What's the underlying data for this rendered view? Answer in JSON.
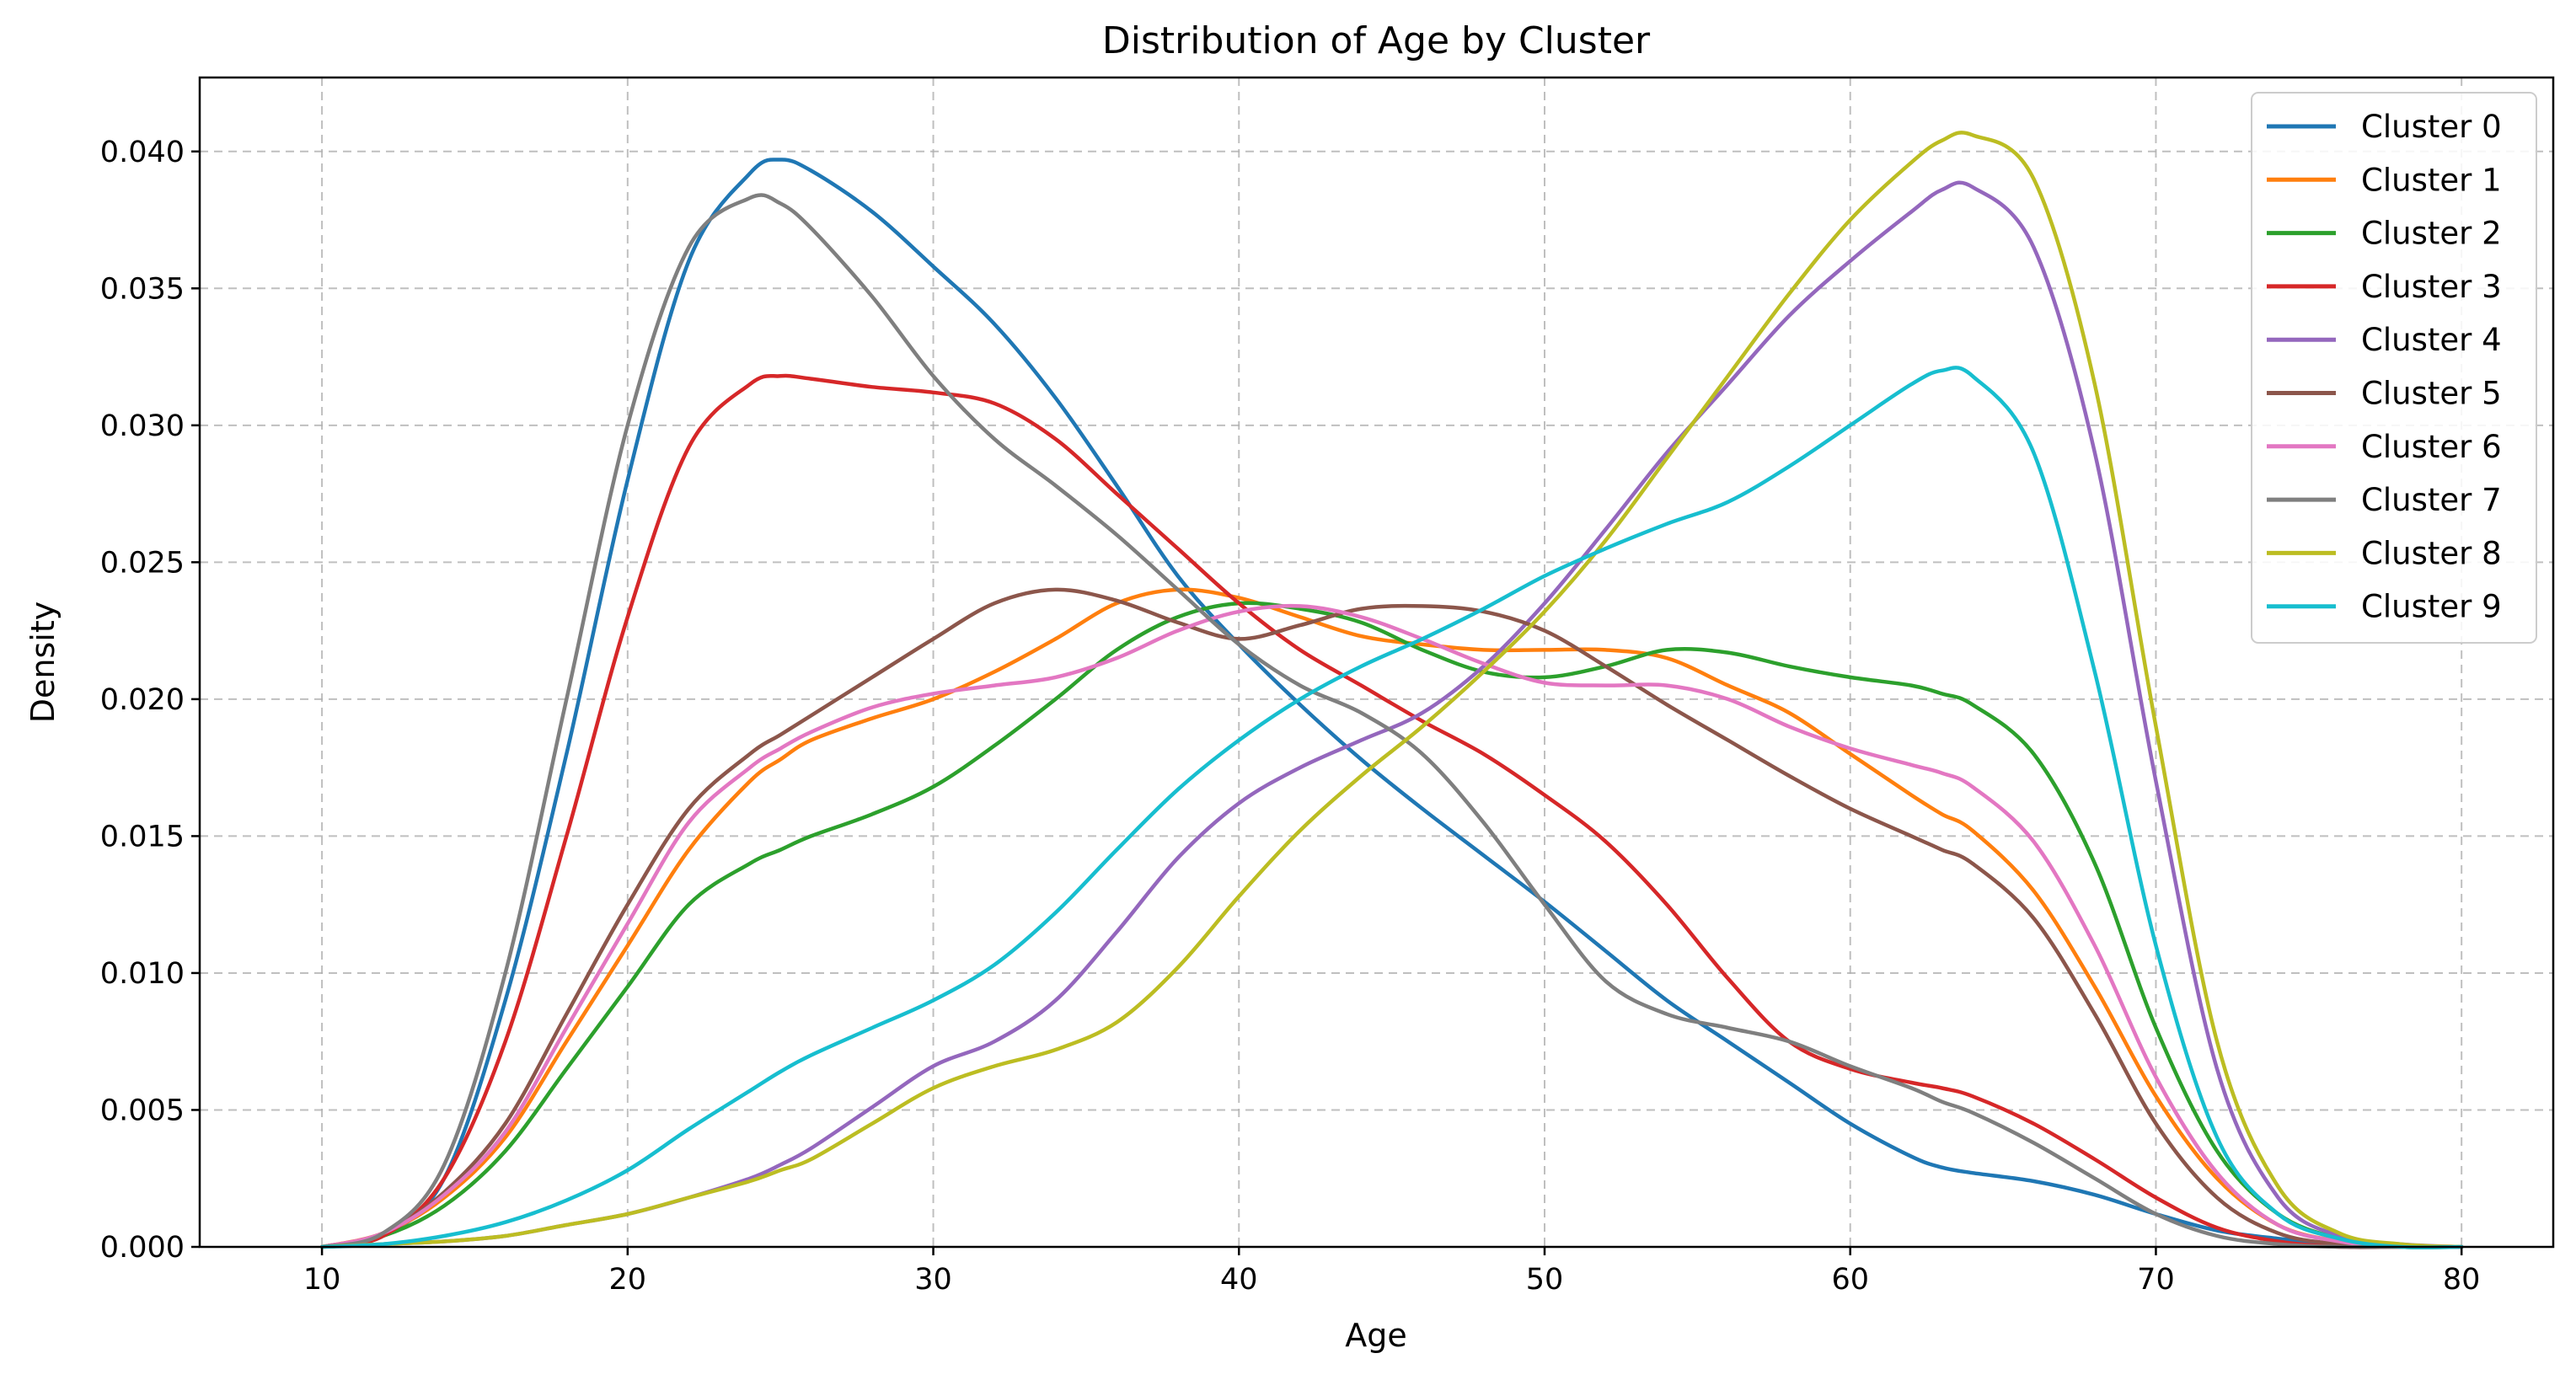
{
  "chart_data": {
    "type": "line",
    "title": "Distribution of Age by Cluster",
    "xlabel": "Age",
    "ylabel": "Density",
    "xlim": [
      6,
      83
    ],
    "ylim": [
      0,
      0.0427
    ],
    "x_ticks": [
      10,
      20,
      30,
      40,
      50,
      60,
      70,
      80
    ],
    "y_ticks": [
      0.0,
      0.005,
      0.01,
      0.015,
      0.02,
      0.025,
      0.03,
      0.035,
      0.04
    ],
    "y_tick_labels": [
      "0.000",
      "0.005",
      "0.010",
      "0.015",
      "0.020",
      "0.025",
      "0.030",
      "0.035",
      "0.040"
    ],
    "grid": true,
    "legend_position": "top-right",
    "x": [
      10,
      12,
      14,
      16,
      18,
      20,
      22,
      24,
      25,
      26,
      28,
      30,
      32,
      34,
      36,
      38,
      40,
      42,
      44,
      46,
      48,
      50,
      52,
      54,
      56,
      58,
      60,
      62,
      63,
      64,
      66,
      68,
      70,
      72,
      74,
      76,
      78,
      80
    ],
    "series": [
      {
        "name": "Cluster 0",
        "color": "#1f77b4",
        "values": [
          0.0,
          0.0004,
          0.0025,
          0.009,
          0.018,
          0.028,
          0.036,
          0.0392,
          0.0397,
          0.0393,
          0.0378,
          0.0358,
          0.0337,
          0.031,
          0.0278,
          0.0245,
          0.022,
          0.0198,
          0.0178,
          0.016,
          0.0143,
          0.0126,
          0.0108,
          0.009,
          0.0075,
          0.006,
          0.0045,
          0.0033,
          0.0029,
          0.0027,
          0.0024,
          0.0019,
          0.0012,
          0.0006,
          0.0003,
          0.0001,
          0.0,
          0.0
        ]
      },
      {
        "name": "Cluster 1",
        "color": "#ff7f0e",
        "values": [
          0.0,
          0.0005,
          0.0018,
          0.004,
          0.0075,
          0.011,
          0.0145,
          0.017,
          0.0178,
          0.0185,
          0.0193,
          0.02,
          0.021,
          0.0222,
          0.0235,
          0.024,
          0.0237,
          0.023,
          0.0223,
          0.022,
          0.0218,
          0.0218,
          0.0218,
          0.0215,
          0.0205,
          0.0195,
          0.018,
          0.0165,
          0.0158,
          0.0152,
          0.013,
          0.0095,
          0.0055,
          0.0025,
          0.0008,
          0.0002,
          0.0,
          0.0
        ]
      },
      {
        "name": "Cluster 2",
        "color": "#2ca02c",
        "values": [
          0.0,
          0.0004,
          0.0015,
          0.0035,
          0.0065,
          0.0095,
          0.0125,
          0.014,
          0.0145,
          0.015,
          0.0158,
          0.0168,
          0.0183,
          0.02,
          0.0218,
          0.023,
          0.0235,
          0.0233,
          0.0228,
          0.0218,
          0.021,
          0.0208,
          0.0212,
          0.0218,
          0.0217,
          0.0212,
          0.0208,
          0.0205,
          0.0202,
          0.0198,
          0.018,
          0.014,
          0.008,
          0.0035,
          0.0012,
          0.0003,
          0.0,
          0.0
        ]
      },
      {
        "name": "Cluster 3",
        "color": "#d62728",
        "values": [
          0.0,
          0.0004,
          0.0025,
          0.0075,
          0.015,
          0.023,
          0.0292,
          0.0315,
          0.0318,
          0.0317,
          0.0314,
          0.0312,
          0.0308,
          0.0295,
          0.0275,
          0.0255,
          0.0235,
          0.0218,
          0.0205,
          0.0192,
          0.018,
          0.0165,
          0.0148,
          0.0125,
          0.0098,
          0.0075,
          0.0065,
          0.006,
          0.0058,
          0.0055,
          0.0045,
          0.0032,
          0.0018,
          0.0007,
          0.0002,
          0.0,
          0.0,
          0.0
        ]
      },
      {
        "name": "Cluster 4",
        "color": "#9467bd",
        "values": [
          0.0,
          0.0001,
          0.0002,
          0.0004,
          0.0008,
          0.0012,
          0.0018,
          0.0025,
          0.003,
          0.0036,
          0.0051,
          0.0066,
          0.0075,
          0.009,
          0.0115,
          0.0142,
          0.0162,
          0.0175,
          0.0185,
          0.0195,
          0.0212,
          0.0235,
          0.0262,
          0.029,
          0.0315,
          0.034,
          0.036,
          0.0378,
          0.0386,
          0.0387,
          0.0365,
          0.029,
          0.017,
          0.0065,
          0.0018,
          0.0004,
          0.0001,
          0.0
        ]
      },
      {
        "name": "Cluster 5",
        "color": "#8c564b",
        "values": [
          0.0,
          0.0005,
          0.002,
          0.0045,
          0.0085,
          0.0125,
          0.016,
          0.018,
          0.0187,
          0.0194,
          0.0208,
          0.0222,
          0.0235,
          0.024,
          0.0236,
          0.0228,
          0.0222,
          0.0227,
          0.0233,
          0.0234,
          0.0232,
          0.0225,
          0.0212,
          0.0198,
          0.0185,
          0.0172,
          0.016,
          0.015,
          0.0145,
          0.014,
          0.012,
          0.0085,
          0.0045,
          0.0018,
          0.0005,
          0.0001,
          0.0,
          0.0
        ]
      },
      {
        "name": "Cluster 6",
        "color": "#e377c2",
        "values": [
          0.0,
          0.0005,
          0.0019,
          0.0042,
          0.008,
          0.0118,
          0.0155,
          0.0175,
          0.0182,
          0.0188,
          0.0197,
          0.0202,
          0.0205,
          0.0208,
          0.0215,
          0.0225,
          0.0232,
          0.0234,
          0.023,
          0.0222,
          0.0213,
          0.0206,
          0.0205,
          0.0205,
          0.02,
          0.019,
          0.0182,
          0.0176,
          0.0173,
          0.0168,
          0.0148,
          0.011,
          0.0062,
          0.0027,
          0.0008,
          0.0002,
          0.0,
          0.0
        ]
      },
      {
        "name": "Cluster 7",
        "color": "#7f7f7f",
        "values": [
          0.0,
          0.0005,
          0.003,
          0.01,
          0.02,
          0.03,
          0.0365,
          0.0383,
          0.0381,
          0.0372,
          0.0347,
          0.0318,
          0.0295,
          0.0278,
          0.026,
          0.024,
          0.022,
          0.0205,
          0.0195,
          0.018,
          0.0155,
          0.0125,
          0.0097,
          0.0085,
          0.008,
          0.0075,
          0.0066,
          0.0058,
          0.0053,
          0.0049,
          0.0038,
          0.0025,
          0.0012,
          0.0004,
          0.0001,
          0.0,
          0.0,
          0.0
        ]
      },
      {
        "name": "Cluster 8",
        "color": "#bcbd22",
        "values": [
          0.0,
          0.0001,
          0.0002,
          0.0004,
          0.0008,
          0.0012,
          0.0018,
          0.0024,
          0.0028,
          0.0032,
          0.0045,
          0.0058,
          0.0066,
          0.0072,
          0.0082,
          0.0102,
          0.0128,
          0.0152,
          0.0172,
          0.019,
          0.021,
          0.0232,
          0.0258,
          0.0288,
          0.0318,
          0.0348,
          0.0375,
          0.0396,
          0.0404,
          0.0406,
          0.039,
          0.0315,
          0.019,
          0.0075,
          0.0022,
          0.0005,
          0.0001,
          0.0
        ]
      },
      {
        "name": "Cluster 9",
        "color": "#17becf",
        "values": [
          0.0,
          0.0001,
          0.0004,
          0.0009,
          0.0017,
          0.0028,
          0.0043,
          0.0057,
          0.0064,
          0.007,
          0.008,
          0.009,
          0.0103,
          0.0122,
          0.0145,
          0.0167,
          0.0185,
          0.02,
          0.0212,
          0.0222,
          0.0233,
          0.0245,
          0.0255,
          0.0264,
          0.0272,
          0.0285,
          0.03,
          0.0315,
          0.032,
          0.0318,
          0.029,
          0.021,
          0.011,
          0.004,
          0.0012,
          0.0003,
          0.0,
          0.0
        ]
      }
    ]
  }
}
